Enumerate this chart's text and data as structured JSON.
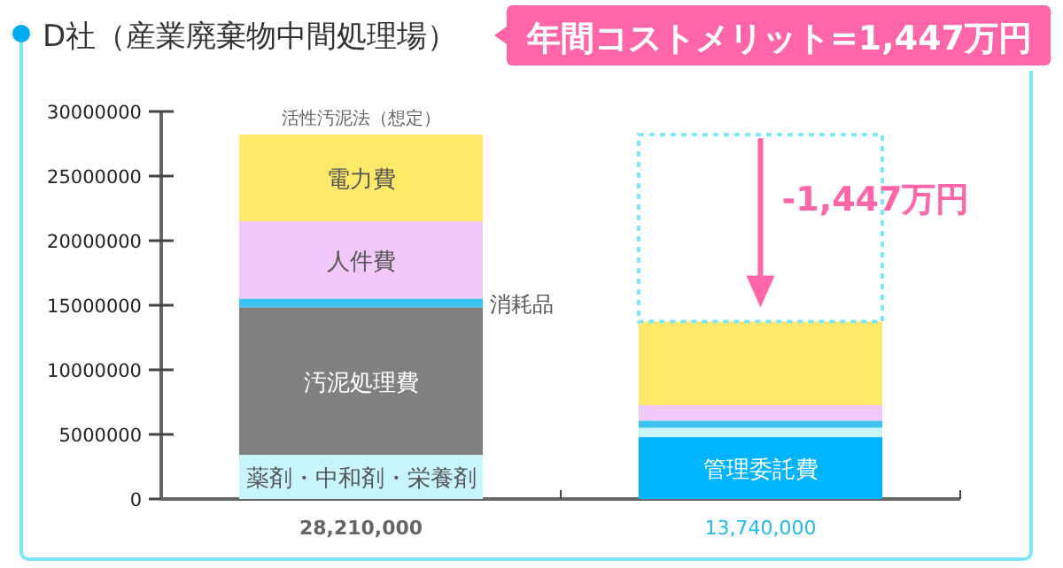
{
  "chart_data": {
    "type": "bar",
    "stacked": true,
    "title": "D社（産業廃棄物中間処理場）",
    "subtitle": "年間コストメリット=1,447万円",
    "categories": [
      "活性汚泥法（想定）",
      null
    ],
    "series": [
      {
        "name": "管理委託費",
        "color": "#00b4ff",
        "values": [
          0,
          4790000
        ]
      },
      {
        "name": "薬剤・中和剤・栄養剤",
        "color": "#c8f5fc",
        "values": [
          3420000,
          730000
        ]
      },
      {
        "name": "汚泥処理費",
        "color": "#808080",
        "values": [
          11420000,
          0
        ]
      },
      {
        "name": "消耗品",
        "color": "#3cc4f0",
        "values": [
          680000,
          550000
        ]
      },
      {
        "name": "人件費",
        "color": "#f0c8fa",
        "values": [
          5980000,
          1190000
        ]
      },
      {
        "name": "電力費",
        "color": "#ffe96a",
        "values": [
          6710000,
          6480000
        ]
      }
    ],
    "totals": [
      "28,210,000",
      "13,740,000"
    ],
    "ylim": [
      0,
      30000000
    ],
    "yticks": [
      0,
      5000000,
      10000000,
      15000000,
      20000000,
      25000000,
      30000000
    ],
    "annotations": [
      "-1,447万円"
    ],
    "grid": false
  }
}
